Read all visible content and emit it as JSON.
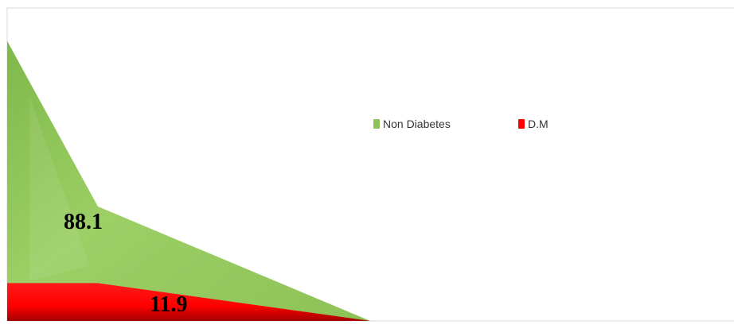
{
  "chart_data": {
    "type": "area",
    "categories": [
      "",
      "",
      ""
    ],
    "series": [
      {
        "name": "Non Diabetes",
        "values": [
          88.1,
          36,
          0
        ],
        "color": "#8fc35a",
        "data_label": "88.1"
      },
      {
        "name": "D.M",
        "values": [
          11.9,
          11.9,
          0
        ],
        "color": "#ff0000",
        "data_label": "11.9"
      }
    ],
    "ylim": [
      0,
      100
    ],
    "grid": false,
    "legend": {
      "position": "right"
    },
    "title": "",
    "xlabel": "",
    "ylabel": ""
  }
}
